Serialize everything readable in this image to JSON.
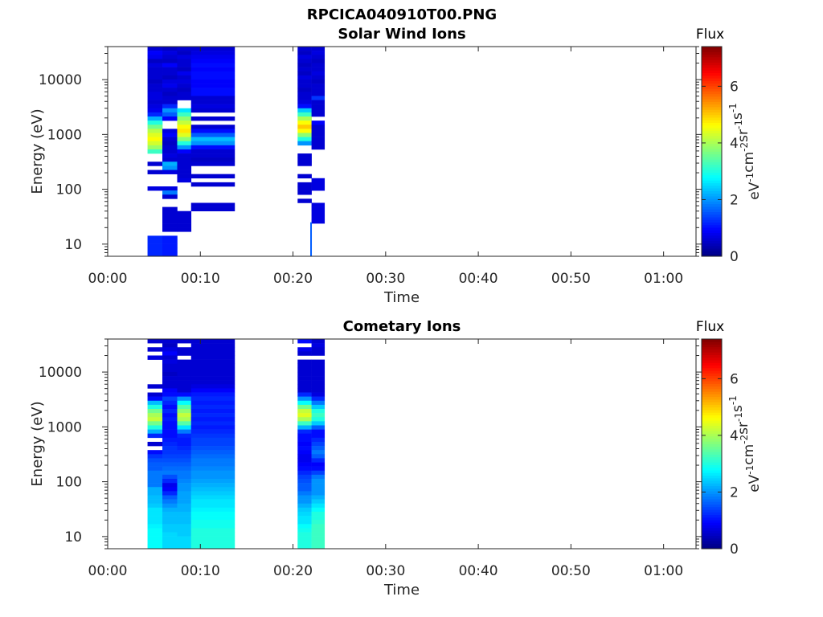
{
  "figure": {
    "title": "RPCICA040910T00.PNG"
  },
  "colorbar": {
    "label": "Flux",
    "unit_base": "eV",
    "unit_parts": [
      {
        "b": "eV",
        "e": "-1"
      },
      {
        "b": "cm",
        "e": "-2"
      },
      {
        "b": "sr",
        "e": "-1"
      },
      {
        "b": "s",
        "e": "-1"
      }
    ],
    "range": [
      0,
      7.4
    ],
    "ticks": [
      "0",
      "2",
      "4",
      "6"
    ],
    "colormap": "jet"
  },
  "chart_data": [
    {
      "type": "heatmap",
      "title": "Solar Wind Ions",
      "xlabel": "Time",
      "ylabel": "Energy (eV)",
      "x_ticks": [
        "00:00",
        "00:10",
        "00:20",
        "00:30",
        "00:40",
        "00:50",
        "01:00"
      ],
      "y_ticks": [
        "10",
        "100",
        "1000",
        "10000"
      ],
      "y_scale": "log",
      "xlim_minutes": [
        0,
        63.5
      ],
      "ylim_eV": [
        6,
        40000
      ],
      "time_bins": [
        {
          "x": [
            4.3,
            5.9
          ],
          "e": [
            0.6,
            0.9,
            0.8,
            0.5,
            0.7,
            0.6,
            0.6,
            0.6,
            0.5,
            0.6,
            0.6,
            0.7,
            0.7,
            0.6,
            0.7,
            0.8,
            1.2,
            2.2,
            3.0,
            3.6,
            4.1,
            4.4,
            4.6,
            4.3,
            3.9,
            3.2,
            null,
            null,
            0.6,
            null,
            0.6,
            null,
            null,
            null,
            0.7,
            null,
            null,
            null,
            null,
            null,
            null,
            null,
            null,
            null,
            null,
            null,
            1.2,
            1.2,
            1.2,
            1.2,
            1.2
          ]
        },
        {
          "x": [
            5.9,
            7.5
          ],
          "e": [
            0.5,
            0.7,
            0.6,
            0.5,
            0.9,
            0.6,
            0.6,
            0.5,
            0.7,
            0.8,
            0.6,
            0.5,
            0.6,
            0.6,
            1.2,
            2.0,
            1.6,
            0.9,
            null,
            null,
            0.7,
            0.9,
            0.6,
            0.5,
            0.6,
            0.6,
            0.7,
            0.6,
            2.2,
            2.0,
            0.7,
            null,
            null,
            null,
            0.7,
            1.8,
            0.6,
            null,
            null,
            0.6,
            0.6,
            0.6,
            0.6,
            0.6,
            0.6,
            null,
            1.1,
            1.1,
            1.1,
            1.1,
            1.1
          ]
        },
        {
          "x": [
            7.5,
            9.0
          ],
          "e": [
            0.6,
            0.5,
            0.7,
            0.6,
            0.6,
            0.5,
            0.8,
            0.6,
            0.7,
            0.6,
            0.5,
            0.6,
            0.6,
            null,
            null,
            2.6,
            3.2,
            3.8,
            4.2,
            4.6,
            4.8,
            4.4,
            3.8,
            3.0,
            2.0,
            0.9,
            0.6,
            0.6,
            0.6,
            0.6,
            0.6,
            0.6,
            0.7,
            null,
            null,
            null,
            null,
            null,
            null,
            null,
            0.6,
            0.6,
            0.6,
            0.6,
            0.6,
            null,
            null,
            null,
            null,
            null,
            null
          ]
        },
        {
          "x": [
            9.0,
            13.7
          ],
          "e": [
            0.6,
            0.7,
            0.8,
            0.9,
            1.0,
            0.9,
            1.0,
            1.0,
            0.9,
            0.9,
            1.0,
            1.0,
            0.6,
            0.6,
            0.7,
            0.6,
            null,
            0.6,
            null,
            0.6,
            1.0,
            1.6,
            2.3,
            2.0,
            1.0,
            0.6,
            0.6,
            0.5,
            0.6,
            null,
            null,
            0.6,
            null,
            0.6,
            null,
            null,
            null,
            null,
            0.6,
            0.6,
            null,
            null,
            null,
            null,
            null,
            null,
            null,
            null,
            null,
            null,
            null
          ]
        },
        {
          "x": [
            20.5,
            22.0
          ],
          "e": [
            0.6,
            0.5,
            0.7,
            0.6,
            0.5,
            0.6,
            0.5,
            0.7,
            0.6,
            0.6,
            0.5,
            0.6,
            0.6,
            0.7,
            1.0,
            2.4,
            3.2,
            4.0,
            4.6,
            5.0,
            4.6,
            3.8,
            3.0,
            2.0,
            null,
            null,
            0.6,
            0.6,
            0.6,
            null,
            null,
            0.6,
            null,
            0.6,
            0.6,
            0.6,
            null,
            0.6,
            null,
            null,
            null,
            null,
            null,
            null,
            null,
            null,
            null,
            null,
            null,
            null,
            null
          ]
        },
        {
          "x": [
            22.0,
            23.4
          ],
          "e": [
            0.6,
            0.7,
            0.6,
            0.5,
            0.6,
            0.6,
            0.7,
            0.6,
            0.5,
            0.6,
            0.6,
            0.6,
            1.3,
            0.6,
            0.6,
            0.6,
            0.6,
            null,
            0.9,
            0.6,
            0.6,
            0.6,
            0.6,
            0.6,
            0.6,
            null,
            null,
            null,
            null,
            null,
            null,
            null,
            0.7,
            0.7,
            0.7,
            null,
            null,
            null,
            0.7,
            0.7,
            0.7,
            0.7,
            0.7,
            null,
            null,
            null,
            null,
            null,
            null,
            null,
            null
          ]
        }
      ],
      "narrow_lines": [
        {
          "x": 21.95,
          "e_range": [
            6,
            25
          ],
          "v": 1.6
        }
      ]
    },
    {
      "type": "heatmap",
      "title": "Cometary Ions",
      "xlabel": "Time",
      "ylabel": "Energy (eV)",
      "x_ticks": [
        "00:00",
        "00:10",
        "00:20",
        "00:30",
        "00:40",
        "00:50",
        "01:00"
      ],
      "y_ticks": [
        "10",
        "100",
        "1000",
        "10000"
      ],
      "y_scale": "log",
      "xlim_minutes": [
        0,
        63.5
      ],
      "ylim_eV": [
        6,
        40000
      ],
      "time_bins": [
        {
          "x": [
            4.3,
            5.9
          ],
          "e": [
            0.6,
            null,
            0.6,
            null,
            0.7,
            null,
            null,
            null,
            null,
            null,
            null,
            0.6,
            null,
            0.6,
            1.0,
            2.3,
            3.0,
            3.6,
            4.0,
            4.2,
            3.6,
            3.0,
            2.2,
            1.2,
            null,
            0.6,
            null,
            1.0,
            1.3,
            1.5,
            1.6,
            1.6,
            1.8,
            1.8,
            1.8,
            1.8,
            2.2,
            2.2,
            2.3,
            2.3,
            2.4,
            2.6,
            2.6,
            2.6,
            2.6,
            2.7,
            2.8,
            2.8,
            2.8,
            2.8,
            2.8
          ]
        },
        {
          "x": [
            5.9,
            7.5
          ],
          "e": [
            0.6,
            0.5,
            0.7,
            0.9,
            0.6,
            0.7,
            0.6,
            0.6,
            0.5,
            0.6,
            0.6,
            0.6,
            0.9,
            1.0,
            1.4,
            1.2,
            1.0,
            1.2,
            1.0,
            1.1,
            1.0,
            1.0,
            1.0,
            1.0,
            1.1,
            1.2,
            1.3,
            1.3,
            1.4,
            1.5,
            1.6,
            1.7,
            1.8,
            1.5,
            1.2,
            0.8,
            0.9,
            1.2,
            1.6,
            1.8,
            2.0,
            2.2,
            2.3,
            2.3,
            2.3,
            2.4,
            2.4,
            2.5,
            2.5,
            2.5,
            2.5
          ]
        },
        {
          "x": [
            7.5,
            9.0
          ],
          "e": [
            0.6,
            null,
            0.6,
            0.6,
            null,
            0.6,
            0.6,
            0.6,
            0.6,
            0.6,
            0.6,
            0.6,
            0.6,
            1.0,
            2.0,
            2.8,
            3.4,
            3.8,
            4.2,
            4.0,
            3.4,
            2.6,
            1.8,
            1.2,
            1.1,
            1.1,
            1.2,
            1.3,
            1.4,
            1.5,
            1.6,
            1.7,
            1.8,
            1.8,
            1.9,
            2.0,
            2.0,
            2.1,
            2.1,
            2.1,
            2.2,
            2.2,
            2.3,
            2.3,
            2.3,
            2.4,
            2.4,
            2.4,
            2.5,
            2.5,
            2.5
          ]
        },
        {
          "x": [
            9.0,
            13.7
          ],
          "e": [
            0.6,
            0.6,
            0.6,
            0.6,
            0.6,
            0.6,
            0.6,
            0.6,
            0.6,
            0.6,
            0.6,
            0.7,
            0.9,
            1.1,
            1.2,
            1.1,
            1.2,
            1.1,
            1.2,
            1.1,
            1.2,
            1.1,
            1.2,
            1.3,
            1.4,
            1.4,
            1.5,
            1.6,
            1.7,
            1.8,
            1.8,
            1.9,
            2.0,
            2.0,
            2.1,
            2.2,
            2.3,
            2.4,
            2.5,
            2.6,
            2.6,
            2.7,
            2.8,
            2.8,
            2.9,
            2.9,
            3.0,
            3.0,
            3.0,
            3.0,
            3.0
          ]
        },
        {
          "x": [
            20.5,
            22.0
          ],
          "e": [
            1.0,
            null,
            0.8,
            0.6,
            null,
            0.6,
            0.6,
            0.6,
            0.6,
            0.6,
            0.6,
            0.6,
            0.6,
            1.2,
            2.0,
            2.8,
            3.6,
            4.2,
            4.4,
            4.0,
            3.2,
            2.2,
            1.2,
            1.0,
            1.0,
            0.9,
            1.0,
            0.9,
            0.8,
            0.8,
            0.9,
            1.0,
            1.2,
            1.4,
            1.5,
            1.6,
            1.6,
            1.8,
            2.0,
            2.0,
            2.2,
            2.4,
            2.5,
            2.6,
            2.6,
            2.8,
            2.9,
            3.0,
            3.0,
            3.0,
            3.0
          ]
        },
        {
          "x": [
            22.0,
            23.4
          ],
          "e": [
            0.6,
            0.7,
            0.6,
            0.6,
            null,
            0.6,
            0.6,
            0.6,
            0.6,
            0.6,
            0.6,
            0.6,
            0.6,
            0.7,
            1.2,
            1.8,
            2.4,
            3.0,
            3.2,
            3.0,
            2.4,
            1.6,
            1.0,
            1.0,
            1.2,
            1.4,
            1.6,
            1.8,
            1.6,
            1.2,
            0.9,
            1.0,
            1.4,
            1.8,
            2.0,
            2.0,
            2.0,
            2.0,
            2.2,
            2.4,
            2.6,
            2.8,
            3.0,
            3.0,
            3.1,
            3.2,
            3.2,
            3.2,
            3.2,
            3.2,
            3.2
          ]
        }
      ],
      "narrow_lines": []
    }
  ]
}
